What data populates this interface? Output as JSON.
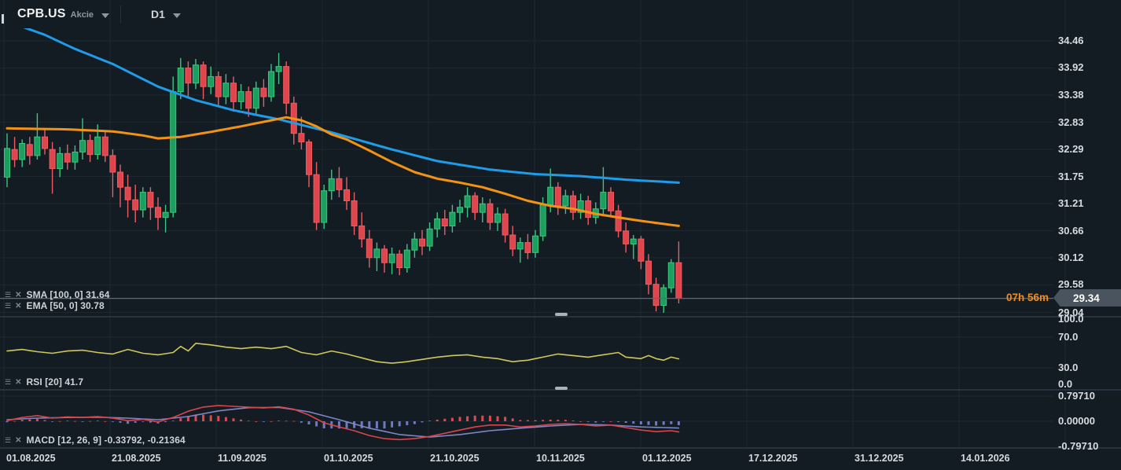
{
  "topbar": {
    "symbol": "CPB.US",
    "instrument_type": "Akcie",
    "timeframe": "D1"
  },
  "legends": {
    "sma": "SMA [100, 0] 31.64",
    "ema": "EMA [50, 0] 30.78",
    "rsi": "RSI [20] 41.7",
    "macd": "MACD [12, 26, 9] -0.33792, -0.21364"
  },
  "price_axis": {
    "ticks": [
      "34.46",
      "33.92",
      "33.38",
      "32.83",
      "32.29",
      "31.75",
      "31.21",
      "30.66",
      "30.12",
      "29.58",
      "29.04"
    ],
    "current_price": "29.34",
    "countdown": "07h 56m"
  },
  "rsi_axis": {
    "ticks": [
      "100.0",
      "70.0",
      "30.0",
      "0.0"
    ]
  },
  "macd_axis": {
    "ticks": [
      "0.79710",
      "0.00000",
      "-0.79710"
    ]
  },
  "time_axis": {
    "labels": [
      "01.08.2025",
      "21.08.2025",
      "11.09.2025",
      "01.10.2025",
      "21.10.2025",
      "10.11.2025",
      "01.12.2025",
      "17.12.2025",
      "31.12.2025",
      "14.01.2026"
    ]
  },
  "colors": {
    "background": "#141c23",
    "grid": "#1d2730",
    "separator": "#2d3a47",
    "bull_fill": "#1b9e5e",
    "bull_stroke": "#3dc57f",
    "bear_fill": "#e0454b",
    "bear_stroke": "#e85e63",
    "sma": "#1f9ce8",
    "ema": "#f39315",
    "rsi": "#cfc75c",
    "macd_line": "#d9454b",
    "signal_line": "#7d87c5",
    "hist_pos": "#e0484e",
    "hist_neg": "#6f7ac0",
    "price_line": "#5d6b77",
    "countdown": "#f08c1e",
    "tag_bg": "#49545f",
    "handle": "#aab2ba"
  },
  "chart_data": {
    "type": "candlestick",
    "symbol": "CPB.US",
    "timeframe": "D1",
    "x_labels": [
      "01.08.2025",
      "21.08.2025",
      "11.09.2025",
      "01.10.2025",
      "21.10.2025",
      "10.11.2025",
      "01.12.2025",
      "17.12.2025",
      "31.12.2025",
      "14.01.2026"
    ],
    "price_range_shown": [
      29.04,
      34.46
    ],
    "current_price": 29.34,
    "ohlc": [
      [
        31.75,
        32.62,
        31.55,
        32.32
      ],
      [
        32.3,
        32.55,
        31.95,
        32.1
      ],
      [
        32.1,
        32.5,
        31.95,
        32.42
      ],
      [
        32.4,
        32.55,
        32.0,
        32.18
      ],
      [
        32.18,
        33.02,
        32.1,
        32.55
      ],
      [
        32.55,
        32.7,
        32.2,
        32.32
      ],
      [
        32.3,
        32.45,
        31.42,
        31.92
      ],
      [
        31.92,
        32.35,
        31.75,
        32.22
      ],
      [
        32.22,
        32.4,
        31.9,
        32.05
      ],
      [
        32.05,
        32.38,
        31.9,
        32.25
      ],
      [
        32.25,
        32.92,
        32.1,
        32.48
      ],
      [
        32.48,
        32.6,
        32.05,
        32.2
      ],
      [
        32.2,
        32.8,
        32.1,
        32.55
      ],
      [
        32.55,
        32.65,
        32.05,
        32.18
      ],
      [
        32.18,
        32.3,
        31.35,
        31.85
      ],
      [
        31.85,
        32.0,
        31.15,
        31.55
      ],
      [
        31.55,
        31.8,
        30.95,
        31.3
      ],
      [
        31.3,
        31.6,
        30.85,
        31.1
      ],
      [
        31.1,
        31.55,
        30.95,
        31.45
      ],
      [
        31.45,
        31.55,
        30.9,
        31.15
      ],
      [
        31.15,
        31.35,
        30.7,
        30.95
      ],
      [
        30.95,
        31.2,
        30.65,
        31.05
      ],
      [
        31.05,
        33.75,
        30.95,
        33.45
      ],
      [
        33.45,
        34.12,
        33.3,
        33.92
      ],
      [
        33.92,
        34.05,
        33.35,
        33.62
      ],
      [
        33.62,
        34.1,
        33.5,
        33.98
      ],
      [
        33.98,
        34.05,
        33.3,
        33.55
      ],
      [
        33.55,
        33.95,
        33.4,
        33.75
      ],
      [
        33.75,
        33.85,
        33.15,
        33.35
      ],
      [
        33.35,
        33.8,
        33.2,
        33.62
      ],
      [
        33.62,
        33.75,
        33.05,
        33.25
      ],
      [
        33.25,
        33.6,
        33.1,
        33.45
      ],
      [
        33.45,
        33.55,
        32.95,
        33.12
      ],
      [
        33.12,
        33.65,
        33.0,
        33.52
      ],
      [
        33.52,
        33.7,
        33.15,
        33.35
      ],
      [
        33.35,
        34.0,
        33.25,
        33.85
      ],
      [
        33.85,
        34.22,
        33.6,
        33.95
      ],
      [
        33.95,
        34.05,
        33.0,
        33.22
      ],
      [
        33.22,
        33.35,
        32.4,
        32.62
      ],
      [
        32.62,
        32.95,
        32.3,
        32.45
      ],
      [
        32.45,
        32.5,
        31.55,
        31.8
      ],
      [
        31.8,
        32.05,
        30.7,
        30.85
      ],
      [
        30.85,
        31.6,
        30.72,
        31.48
      ],
      [
        31.48,
        31.9,
        31.3,
        31.72
      ],
      [
        31.72,
        31.95,
        31.35,
        31.5
      ],
      [
        31.5,
        31.75,
        31.1,
        31.28
      ],
      [
        31.28,
        31.45,
        30.6,
        30.78
      ],
      [
        30.78,
        31.05,
        30.35,
        30.52
      ],
      [
        30.52,
        30.7,
        29.95,
        30.15
      ],
      [
        30.15,
        30.45,
        29.88,
        30.32
      ],
      [
        30.32,
        30.4,
        29.85,
        30.05
      ],
      [
        30.05,
        30.35,
        29.82,
        30.22
      ],
      [
        30.22,
        30.3,
        29.8,
        29.95
      ],
      [
        29.95,
        30.42,
        29.85,
        30.3
      ],
      [
        30.3,
        30.65,
        30.15,
        30.52
      ],
      [
        30.52,
        30.7,
        30.2,
        30.38
      ],
      [
        30.38,
        30.85,
        30.28,
        30.72
      ],
      [
        30.72,
        31.05,
        30.55,
        30.92
      ],
      [
        30.92,
        31.1,
        30.6,
        30.78
      ],
      [
        30.78,
        31.2,
        30.65,
        31.05
      ],
      [
        31.05,
        31.3,
        30.85,
        31.15
      ],
      [
        31.15,
        31.55,
        30.95,
        31.38
      ],
      [
        31.38,
        31.45,
        30.9,
        31.05
      ],
      [
        31.05,
        31.35,
        30.85,
        31.22
      ],
      [
        31.22,
        31.32,
        30.7,
        30.85
      ],
      [
        30.85,
        31.15,
        30.68,
        31.02
      ],
      [
        31.02,
        31.12,
        30.45,
        30.6
      ],
      [
        30.6,
        30.78,
        30.18,
        30.32
      ],
      [
        30.32,
        30.55,
        30.05,
        30.45
      ],
      [
        30.45,
        30.62,
        30.12,
        30.25
      ],
      [
        30.25,
        30.7,
        30.15,
        30.58
      ],
      [
        30.58,
        31.35,
        30.48,
        31.2
      ],
      [
        31.2,
        31.92,
        31.05,
        31.55
      ],
      [
        31.55,
        31.65,
        31.0,
        31.18
      ],
      [
        31.18,
        31.5,
        31.02,
        31.38
      ],
      [
        31.38,
        31.48,
        30.9,
        31.05
      ],
      [
        31.05,
        31.42,
        30.92,
        31.28
      ],
      [
        31.28,
        31.38,
        30.8,
        30.95
      ],
      [
        30.95,
        31.25,
        30.82,
        31.12
      ],
      [
        31.12,
        31.95,
        31.02,
        31.45
      ],
      [
        31.45,
        31.55,
        30.95,
        31.08
      ],
      [
        31.08,
        31.2,
        30.55,
        30.68
      ],
      [
        30.68,
        30.85,
        30.25,
        30.42
      ],
      [
        30.42,
        30.6,
        30.12,
        30.52
      ],
      [
        30.52,
        30.58,
        29.92,
        30.08
      ],
      [
        30.08,
        30.22,
        29.42,
        29.62
      ],
      [
        29.62,
        29.75,
        29.08,
        29.2
      ],
      [
        29.2,
        29.62,
        29.05,
        29.55
      ],
      [
        29.55,
        30.12,
        29.45,
        30.05
      ],
      [
        30.05,
        30.47,
        29.24,
        29.34
      ]
    ],
    "overlays": [
      {
        "name": "SMA",
        "params": [
          100,
          0
        ],
        "last_value": 31.64,
        "anchors": [
          [
            0,
            34.85
          ],
          [
            5,
            34.58
          ],
          [
            9,
            34.3
          ],
          [
            14,
            34.0
          ],
          [
            20,
            33.55
          ],
          [
            25,
            33.28
          ],
          [
            30,
            33.08
          ],
          [
            36,
            32.9
          ],
          [
            43,
            32.64
          ],
          [
            51,
            32.3
          ],
          [
            57,
            32.07
          ],
          [
            64,
            31.9
          ],
          [
            70,
            31.81
          ],
          [
            76,
            31.77
          ],
          [
            82,
            31.7
          ],
          [
            89,
            31.64
          ]
        ]
      },
      {
        "name": "EMA",
        "params": [
          50,
          0
        ],
        "last_value": 30.78,
        "anchors": [
          [
            0,
            32.72
          ],
          [
            8,
            32.7
          ],
          [
            14,
            32.66
          ],
          [
            18,
            32.58
          ],
          [
            20,
            32.52
          ],
          [
            23,
            32.55
          ],
          [
            27,
            32.65
          ],
          [
            31,
            32.76
          ],
          [
            35,
            32.88
          ],
          [
            37,
            32.94
          ],
          [
            39,
            32.88
          ],
          [
            41,
            32.76
          ],
          [
            43,
            32.6
          ],
          [
            45,
            32.5
          ],
          [
            48,
            32.28
          ],
          [
            51,
            32.05
          ],
          [
            54,
            31.85
          ],
          [
            57,
            31.72
          ],
          [
            60,
            31.64
          ],
          [
            63,
            31.55
          ],
          [
            66,
            31.42
          ],
          [
            69,
            31.28
          ],
          [
            72,
            31.18
          ],
          [
            75,
            31.12
          ],
          [
            78,
            31.02
          ],
          [
            81,
            30.95
          ],
          [
            84,
            30.88
          ],
          [
            89,
            30.78
          ]
        ]
      }
    ],
    "rsi": {
      "name": "RSI",
      "params": [
        20
      ],
      "last_value": 41.7,
      "levels": [
        70,
        30
      ],
      "ylim": [
        0,
        100
      ],
      "anchors": [
        [
          0,
          52
        ],
        [
          2,
          54
        ],
        [
          4,
          51
        ],
        [
          6,
          49
        ],
        [
          8,
          52
        ],
        [
          10,
          53
        ],
        [
          12,
          50
        ],
        [
          14,
          48
        ],
        [
          16,
          54
        ],
        [
          18,
          49
        ],
        [
          20,
          47
        ],
        [
          22,
          50
        ],
        [
          23,
          58
        ],
        [
          24,
          52
        ],
        [
          25,
          62
        ],
        [
          27,
          60
        ],
        [
          29,
          57
        ],
        [
          31,
          55
        ],
        [
          33,
          57
        ],
        [
          35,
          55
        ],
        [
          37,
          58
        ],
        [
          39,
          50
        ],
        [
          41,
          47
        ],
        [
          43,
          52
        ],
        [
          45,
          48
        ],
        [
          47,
          43
        ],
        [
          49,
          38
        ],
        [
          51,
          36
        ],
        [
          53,
          38
        ],
        [
          55,
          41
        ],
        [
          57,
          44
        ],
        [
          59,
          46
        ],
        [
          61,
          47
        ],
        [
          63,
          44
        ],
        [
          65,
          42
        ],
        [
          67,
          38
        ],
        [
          69,
          40
        ],
        [
          71,
          44
        ],
        [
          73,
          48
        ],
        [
          75,
          46
        ],
        [
          77,
          44
        ],
        [
          79,
          47
        ],
        [
          81,
          50
        ],
        [
          82,
          44
        ],
        [
          84,
          42
        ],
        [
          85,
          46
        ],
        [
          86,
          42
        ],
        [
          87,
          40
        ],
        [
          88,
          44
        ],
        [
          89,
          41.7
        ]
      ]
    },
    "macd": {
      "name": "MACD",
      "params": [
        12,
        26,
        9
      ],
      "macd_last": -0.33792,
      "signal_last": -0.21364,
      "axis_ticks": [
        0.7971,
        0.0,
        -0.7971
      ],
      "macd_anchors": [
        [
          0,
          0.02
        ],
        [
          2,
          0.12
        ],
        [
          4,
          0.18
        ],
        [
          6,
          0.1
        ],
        [
          8,
          0.14
        ],
        [
          10,
          0.12
        ],
        [
          12,
          0.15
        ],
        [
          14,
          0.1
        ],
        [
          16,
          0.02
        ],
        [
          18,
          0.06
        ],
        [
          20,
          -0.02
        ],
        [
          22,
          0.12
        ],
        [
          24,
          0.32
        ],
        [
          26,
          0.45
        ],
        [
          28,
          0.5
        ],
        [
          31,
          0.46
        ],
        [
          34,
          0.42
        ],
        [
          36,
          0.46
        ],
        [
          38,
          0.38
        ],
        [
          40,
          0.2
        ],
        [
          42,
          -0.05
        ],
        [
          44,
          -0.18
        ],
        [
          46,
          -0.3
        ],
        [
          48,
          -0.45
        ],
        [
          50,
          -0.55
        ],
        [
          52,
          -0.58
        ],
        [
          54,
          -0.55
        ],
        [
          56,
          -0.48
        ],
        [
          58,
          -0.38
        ],
        [
          60,
          -0.28
        ],
        [
          62,
          -0.18
        ],
        [
          64,
          -0.12
        ],
        [
          66,
          -0.12
        ],
        [
          68,
          -0.18
        ],
        [
          70,
          -0.15
        ],
        [
          72,
          -0.1
        ],
        [
          74,
          -0.08
        ],
        [
          76,
          -0.1
        ],
        [
          78,
          -0.15
        ],
        [
          80,
          -0.12
        ],
        [
          82,
          -0.2
        ],
        [
          84,
          -0.28
        ],
        [
          86,
          -0.33
        ],
        [
          88,
          -0.3
        ],
        [
          89,
          -0.338
        ]
      ],
      "signal_anchors": [
        [
          0,
          0.05
        ],
        [
          4,
          0.1
        ],
        [
          8,
          0.12
        ],
        [
          12,
          0.13
        ],
        [
          16,
          0.1
        ],
        [
          20,
          0.05
        ],
        [
          24,
          0.15
        ],
        [
          28,
          0.33
        ],
        [
          32,
          0.43
        ],
        [
          36,
          0.44
        ],
        [
          40,
          0.3
        ],
        [
          44,
          0.05
        ],
        [
          48,
          -0.22
        ],
        [
          52,
          -0.42
        ],
        [
          56,
          -0.5
        ],
        [
          60,
          -0.42
        ],
        [
          64,
          -0.3
        ],
        [
          68,
          -0.22
        ],
        [
          72,
          -0.15
        ],
        [
          76,
          -0.1
        ],
        [
          80,
          -0.12
        ],
        [
          84,
          -0.18
        ],
        [
          89,
          -0.214
        ]
      ],
      "histogram_rule": "macd_minus_signal"
    }
  }
}
